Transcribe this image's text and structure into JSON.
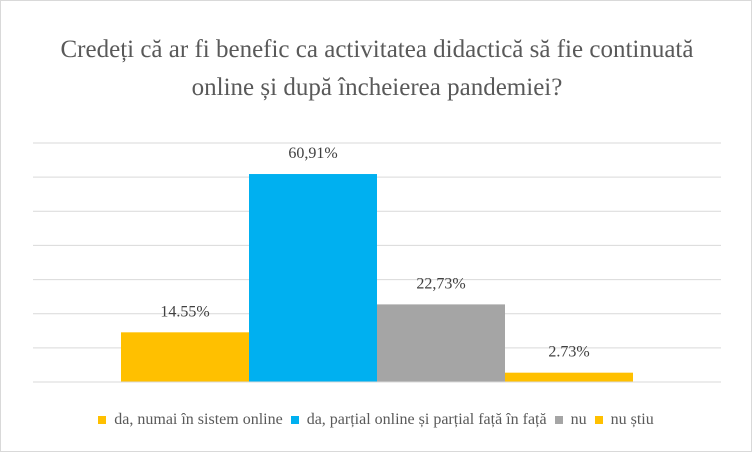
{
  "chart_data": {
    "type": "bar",
    "title": "Credeți că ar fi benefic ca activitatea didactică să fie continuată online și după încheierea pandemiei?",
    "xlabel": "",
    "ylabel": "",
    "ylim": [
      0,
      70
    ],
    "grid": true,
    "legend_position": "bottom",
    "series": [
      {
        "name": "da, numai în sistem online",
        "value": 14.55,
        "label": "14.55%",
        "color": "#FFC000"
      },
      {
        "name": "da, parțial online și parțial față în față",
        "value": 60.91,
        "label": "60,91%",
        "color": "#00B0F0"
      },
      {
        "name": "nu",
        "value": 22.73,
        "label": "22,73%",
        "color": "#A5A5A5"
      },
      {
        "name": "nu știu",
        "value": 2.73,
        "label": "2.73%",
        "color": "#FFC000"
      }
    ]
  }
}
